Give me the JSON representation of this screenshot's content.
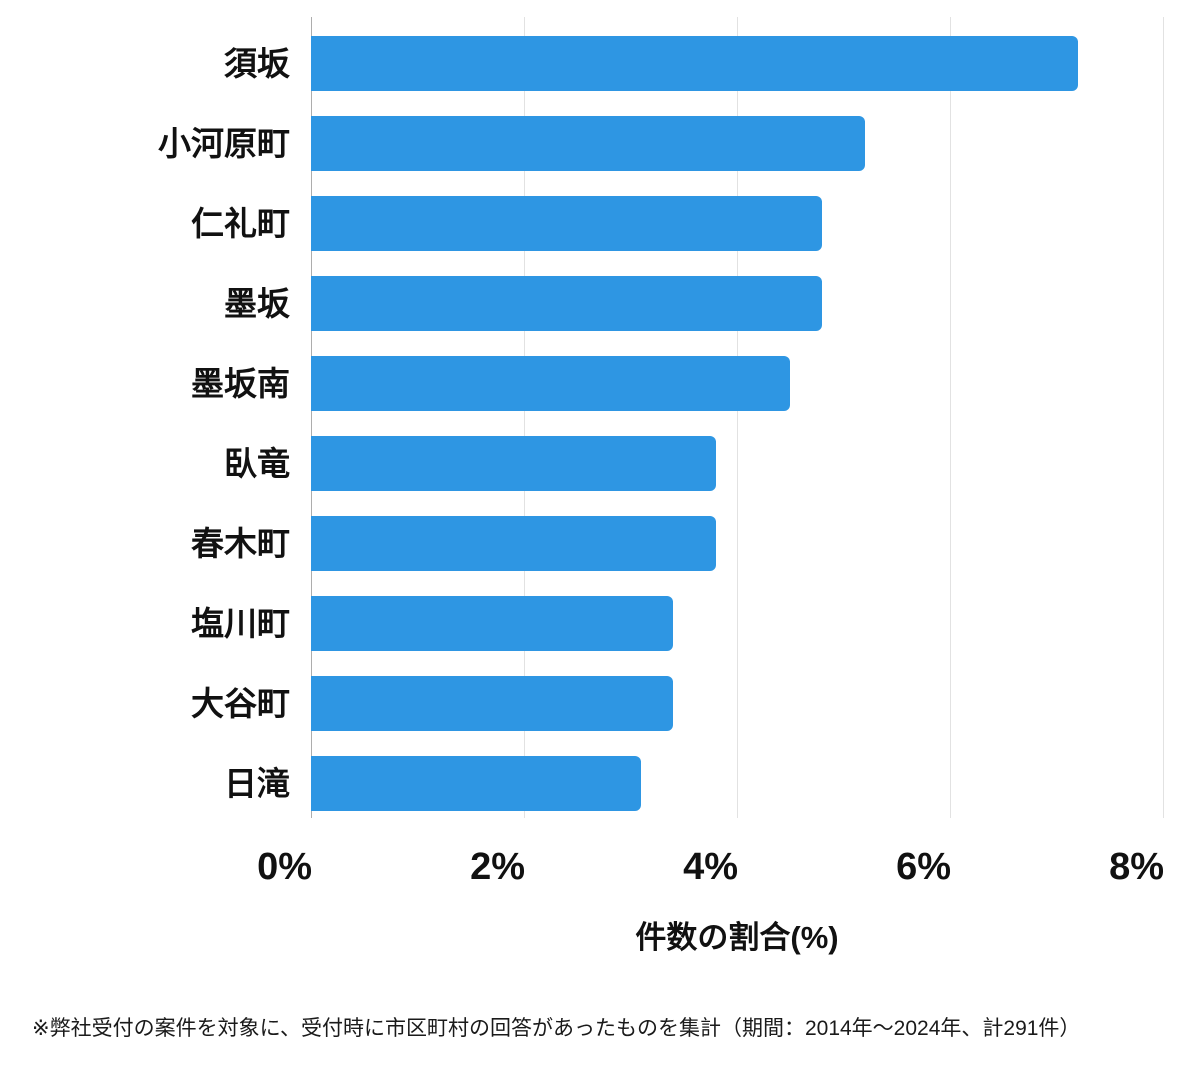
{
  "chart_data": {
    "type": "bar",
    "orientation": "horizontal",
    "title": "",
    "categories": [
      "須坂",
      "小河原町",
      "仁礼町",
      "墨坂",
      "墨坂南",
      "臥竜",
      "春木町",
      "塩川町",
      "大谷町",
      "日滝"
    ],
    "values": [
      7.2,
      5.2,
      4.8,
      4.8,
      4.5,
      3.8,
      3.8,
      3.4,
      3.4,
      3.1
    ],
    "value_unit": "%",
    "xlabel": "件数の割合(%)",
    "ylabel": "",
    "xlim": [
      0,
      8
    ],
    "x_tick_values": [
      0,
      2,
      4,
      6,
      8
    ],
    "x_tick_labels": [
      "0%",
      "2%",
      "4%",
      "6%",
      "8%"
    ],
    "grid": true,
    "legend": false,
    "bar_color": "#2E96E3",
    "grid_color": "#E2E2E2",
    "axis_line_color": "#ADADAD",
    "text_color": "#111111"
  },
  "footnote": "※弊社受付の案件を対象に、受付時に市区町村の回答があったものを集計（期間：2014年〜2024年、計291件）"
}
